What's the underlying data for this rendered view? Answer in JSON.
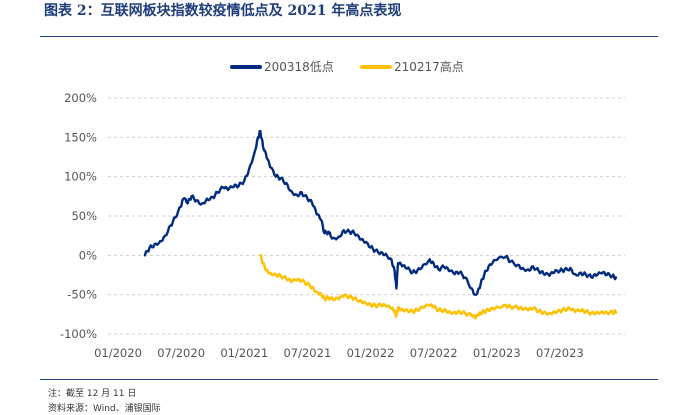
{
  "title": "图表 2：互联网板块指数较疫情低点及 2021 年高点表现",
  "notes": {
    "note": "注：截至 12 月 11 日",
    "source": "资料来源：Wind、浦银国际"
  },
  "chart_data": {
    "type": "line",
    "title": "图表 2：互联网板块指数较疫情低点及 2021 年高点表现",
    "xlabel": "",
    "ylabel": "",
    "x_range": [
      "2020-01",
      "2024-01"
    ],
    "x_ticks": [
      "01/2020",
      "07/2020",
      "01/2021",
      "07/2021",
      "01/2022",
      "07/2022",
      "01/2023",
      "07/2023"
    ],
    "y_ticks": [
      "200%",
      "150%",
      "100%",
      "50%",
      "0%",
      "-50%",
      "-100%"
    ],
    "ylim": [
      -100,
      200
    ],
    "grid": "horizontal dashed",
    "legend_position": "top",
    "series": [
      {
        "name": "200318低点",
        "color": "#002b7f",
        "points": [
          [
            "2020-03-18",
            0
          ],
          [
            "2020-04-01",
            10
          ],
          [
            "2020-04-15",
            14
          ],
          [
            "2020-05-01",
            18
          ],
          [
            "2020-05-15",
            25
          ],
          [
            "2020-06-01",
            38
          ],
          [
            "2020-06-15",
            48
          ],
          [
            "2020-07-01",
            62
          ],
          [
            "2020-07-08",
            72
          ],
          [
            "2020-07-20",
            66
          ],
          [
            "2020-08-01",
            75
          ],
          [
            "2020-08-15",
            70
          ],
          [
            "2020-09-01",
            66
          ],
          [
            "2020-09-15",
            72
          ],
          [
            "2020-10-01",
            74
          ],
          [
            "2020-10-15",
            80
          ],
          [
            "2020-11-01",
            86
          ],
          [
            "2020-11-15",
            83
          ],
          [
            "2020-12-01",
            87
          ],
          [
            "2020-12-15",
            88
          ],
          [
            "2021-01-01",
            95
          ],
          [
            "2021-01-15",
            110
          ],
          [
            "2021-02-01",
            132
          ],
          [
            "2021-02-10",
            150
          ],
          [
            "2021-02-17",
            158
          ],
          [
            "2021-02-25",
            138
          ],
          [
            "2021-03-05",
            124
          ],
          [
            "2021-03-15",
            112
          ],
          [
            "2021-04-01",
            100
          ],
          [
            "2021-04-15",
            98
          ],
          [
            "2021-05-01",
            92
          ],
          [
            "2021-05-15",
            82
          ],
          [
            "2021-06-01",
            77
          ],
          [
            "2021-06-15",
            80
          ],
          [
            "2021-07-01",
            72
          ],
          [
            "2021-07-15",
            66
          ],
          [
            "2021-07-28",
            52
          ],
          [
            "2021-08-10",
            45
          ],
          [
            "2021-08-20",
            28
          ],
          [
            "2021-09-01",
            30
          ],
          [
            "2021-09-15",
            22
          ],
          [
            "2021-10-01",
            24
          ],
          [
            "2021-10-15",
            32
          ],
          [
            "2021-11-01",
            30
          ],
          [
            "2021-11-15",
            28
          ],
          [
            "2021-12-01",
            20
          ],
          [
            "2021-12-15",
            16
          ],
          [
            "2022-01-01",
            10
          ],
          [
            "2022-01-15",
            6
          ],
          [
            "2022-02-01",
            4
          ],
          [
            "2022-02-15",
            2
          ],
          [
            "2022-03-01",
            -5
          ],
          [
            "2022-03-10",
            -20
          ],
          [
            "2022-03-15",
            -42
          ],
          [
            "2022-03-20",
            -10
          ],
          [
            "2022-04-01",
            -14
          ],
          [
            "2022-04-15",
            -17
          ],
          [
            "2022-05-01",
            -22
          ],
          [
            "2022-05-15",
            -19
          ],
          [
            "2022-06-01",
            -12
          ],
          [
            "2022-06-20",
            -5
          ],
          [
            "2022-07-01",
            -10
          ],
          [
            "2022-07-15",
            -18
          ],
          [
            "2022-08-01",
            -15
          ],
          [
            "2022-08-15",
            -20
          ],
          [
            "2022-09-01",
            -24
          ],
          [
            "2022-09-15",
            -22
          ],
          [
            "2022-10-01",
            -28
          ],
          [
            "2022-10-20",
            -42
          ],
          [
            "2022-10-31",
            -50
          ],
          [
            "2022-11-10",
            -42
          ],
          [
            "2022-11-20",
            -30
          ],
          [
            "2022-12-01",
            -20
          ],
          [
            "2022-12-15",
            -12
          ],
          [
            "2023-01-01",
            -6
          ],
          [
            "2023-01-27",
            -2
          ],
          [
            "2023-02-10",
            -8
          ],
          [
            "2023-03-01",
            -12
          ],
          [
            "2023-03-15",
            -16
          ],
          [
            "2023-04-01",
            -18
          ],
          [
            "2023-04-15",
            -14
          ],
          [
            "2023-05-01",
            -20
          ],
          [
            "2023-05-15",
            -24
          ],
          [
            "2023-06-01",
            -26
          ],
          [
            "2023-06-15",
            -22
          ],
          [
            "2023-07-01",
            -20
          ],
          [
            "2023-07-15",
            -18
          ],
          [
            "2023-08-01",
            -16
          ],
          [
            "2023-08-15",
            -24
          ],
          [
            "2023-09-01",
            -22
          ],
          [
            "2023-09-15",
            -24
          ],
          [
            "2023-10-01",
            -28
          ],
          [
            "2023-10-15",
            -26
          ],
          [
            "2023-11-01",
            -23
          ],
          [
            "2023-11-15",
            -25
          ],
          [
            "2023-12-01",
            -26
          ],
          [
            "2023-12-11",
            -28
          ]
        ]
      },
      {
        "name": "210217高点",
        "color": "#ffc000",
        "points": [
          [
            "2021-02-17",
            0
          ],
          [
            "2021-02-25",
            -10
          ],
          [
            "2021-03-05",
            -18
          ],
          [
            "2021-03-15",
            -22
          ],
          [
            "2021-04-01",
            -24
          ],
          [
            "2021-04-15",
            -26
          ],
          [
            "2021-05-01",
            -30
          ],
          [
            "2021-05-15",
            -34
          ],
          [
            "2021-06-01",
            -32
          ],
          [
            "2021-06-15",
            -33
          ],
          [
            "2021-07-01",
            -36
          ],
          [
            "2021-07-15",
            -40
          ],
          [
            "2021-07-28",
            -46
          ],
          [
            "2021-08-10",
            -48
          ],
          [
            "2021-08-20",
            -55
          ],
          [
            "2021-09-01",
            -54
          ],
          [
            "2021-09-15",
            -57
          ],
          [
            "2021-10-01",
            -56
          ],
          [
            "2021-10-15",
            -52
          ],
          [
            "2021-11-01",
            -53
          ],
          [
            "2021-11-15",
            -54
          ],
          [
            "2021-12-01",
            -57
          ],
          [
            "2021-12-15",
            -59
          ],
          [
            "2022-01-01",
            -62
          ],
          [
            "2022-01-15",
            -64
          ],
          [
            "2022-02-01",
            -64
          ],
          [
            "2022-02-15",
            -65
          ],
          [
            "2022-03-01",
            -68
          ],
          [
            "2022-03-10",
            -72
          ],
          [
            "2022-03-15",
            -77
          ],
          [
            "2022-03-20",
            -66
          ],
          [
            "2022-04-01",
            -68
          ],
          [
            "2022-04-15",
            -69
          ],
          [
            "2022-05-01",
            -71
          ],
          [
            "2022-05-15",
            -70
          ],
          [
            "2022-06-01",
            -67
          ],
          [
            "2022-06-20",
            -64
          ],
          [
            "2022-07-01",
            -66
          ],
          [
            "2022-07-15",
            -70
          ],
          [
            "2022-08-01",
            -69
          ],
          [
            "2022-08-15",
            -71
          ],
          [
            "2022-09-01",
            -72
          ],
          [
            "2022-09-15",
            -71
          ],
          [
            "2022-10-01",
            -74
          ],
          [
            "2022-10-20",
            -77
          ],
          [
            "2022-10-31",
            -80
          ],
          [
            "2022-11-10",
            -76
          ],
          [
            "2022-11-20",
            -73
          ],
          [
            "2022-12-01",
            -70
          ],
          [
            "2022-12-15",
            -67
          ],
          [
            "2023-01-01",
            -65
          ],
          [
            "2023-01-27",
            -63
          ],
          [
            "2023-02-10",
            -65
          ],
          [
            "2023-03-01",
            -67
          ],
          [
            "2023-03-15",
            -69
          ],
          [
            "2023-04-01",
            -70
          ],
          [
            "2023-04-15",
            -68
          ],
          [
            "2023-05-01",
            -71
          ],
          [
            "2023-05-15",
            -72
          ],
          [
            "2023-06-01",
            -73
          ],
          [
            "2023-06-15",
            -71
          ],
          [
            "2023-07-01",
            -70
          ],
          [
            "2023-07-15",
            -69
          ],
          [
            "2023-08-01",
            -69
          ],
          [
            "2023-08-15",
            -72
          ],
          [
            "2023-09-01",
            -71
          ],
          [
            "2023-09-15",
            -72
          ],
          [
            "2023-10-01",
            -73
          ],
          [
            "2023-10-15",
            -72
          ],
          [
            "2023-11-01",
            -71
          ],
          [
            "2023-11-15",
            -72
          ],
          [
            "2023-12-01",
            -72
          ],
          [
            "2023-12-11",
            -73
          ]
        ]
      }
    ]
  }
}
